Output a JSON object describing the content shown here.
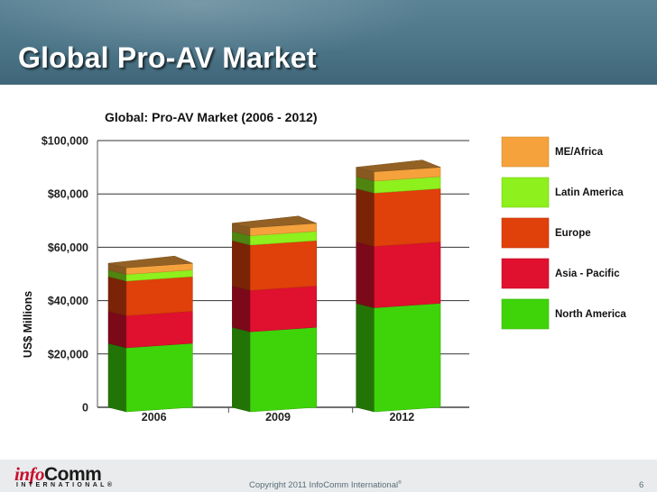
{
  "slide": {
    "title": "Global Pro-AV Market",
    "copyright": "Copyright 2011 InfoComm International",
    "copyright_mark": "®",
    "page_number": "6"
  },
  "logo": {
    "text_info": "info",
    "text_comm": "Comm",
    "text_sub": "INTERNATIONAL®"
  },
  "colors": {
    "header": "#4c7588",
    "north_america": "#3fd30a",
    "asia_pacific": "#e0102f",
    "europe": "#e0400a",
    "latin_america": "#8ef01c",
    "me_africa": "#f5a23c"
  },
  "chart_data": {
    "type": "bar",
    "stacked": true,
    "style": "3d",
    "title": "Global: Pro-AV Market (2006 - 2012)",
    "xlabel": "",
    "ylabel": "US$ Millions",
    "categories": [
      "2006",
      "2009",
      "2012"
    ],
    "ylim": [
      0,
      100000
    ],
    "yticks": [
      0,
      20000,
      40000,
      60000,
      80000,
      100000
    ],
    "ytick_labels": [
      "0",
      "$20,000",
      "$40,000",
      "$60,000",
      "$80,000",
      "$100,000"
    ],
    "grid": true,
    "legend_position": "right",
    "series": [
      {
        "name": "North America",
        "values": [
          24000,
          30000,
          39000
        ],
        "color": "#3fd30a"
      },
      {
        "name": "Asia - Pacific",
        "values": [
          12000,
          15500,
          23000
        ],
        "color": "#e0102f"
      },
      {
        "name": "Europe",
        "values": [
          13000,
          17000,
          20000
        ],
        "color": "#e0400a"
      },
      {
        "name": "Latin America",
        "values": [
          2500,
          3500,
          4500
        ],
        "color": "#8ef01c"
      },
      {
        "name": "ME/Africa",
        "values": [
          2500,
          3000,
          3500
        ],
        "color": "#f5a23c"
      }
    ],
    "legend_order": [
      "ME/Africa",
      "Latin America",
      "Europe",
      "Asia - Pacific",
      "North America"
    ]
  }
}
